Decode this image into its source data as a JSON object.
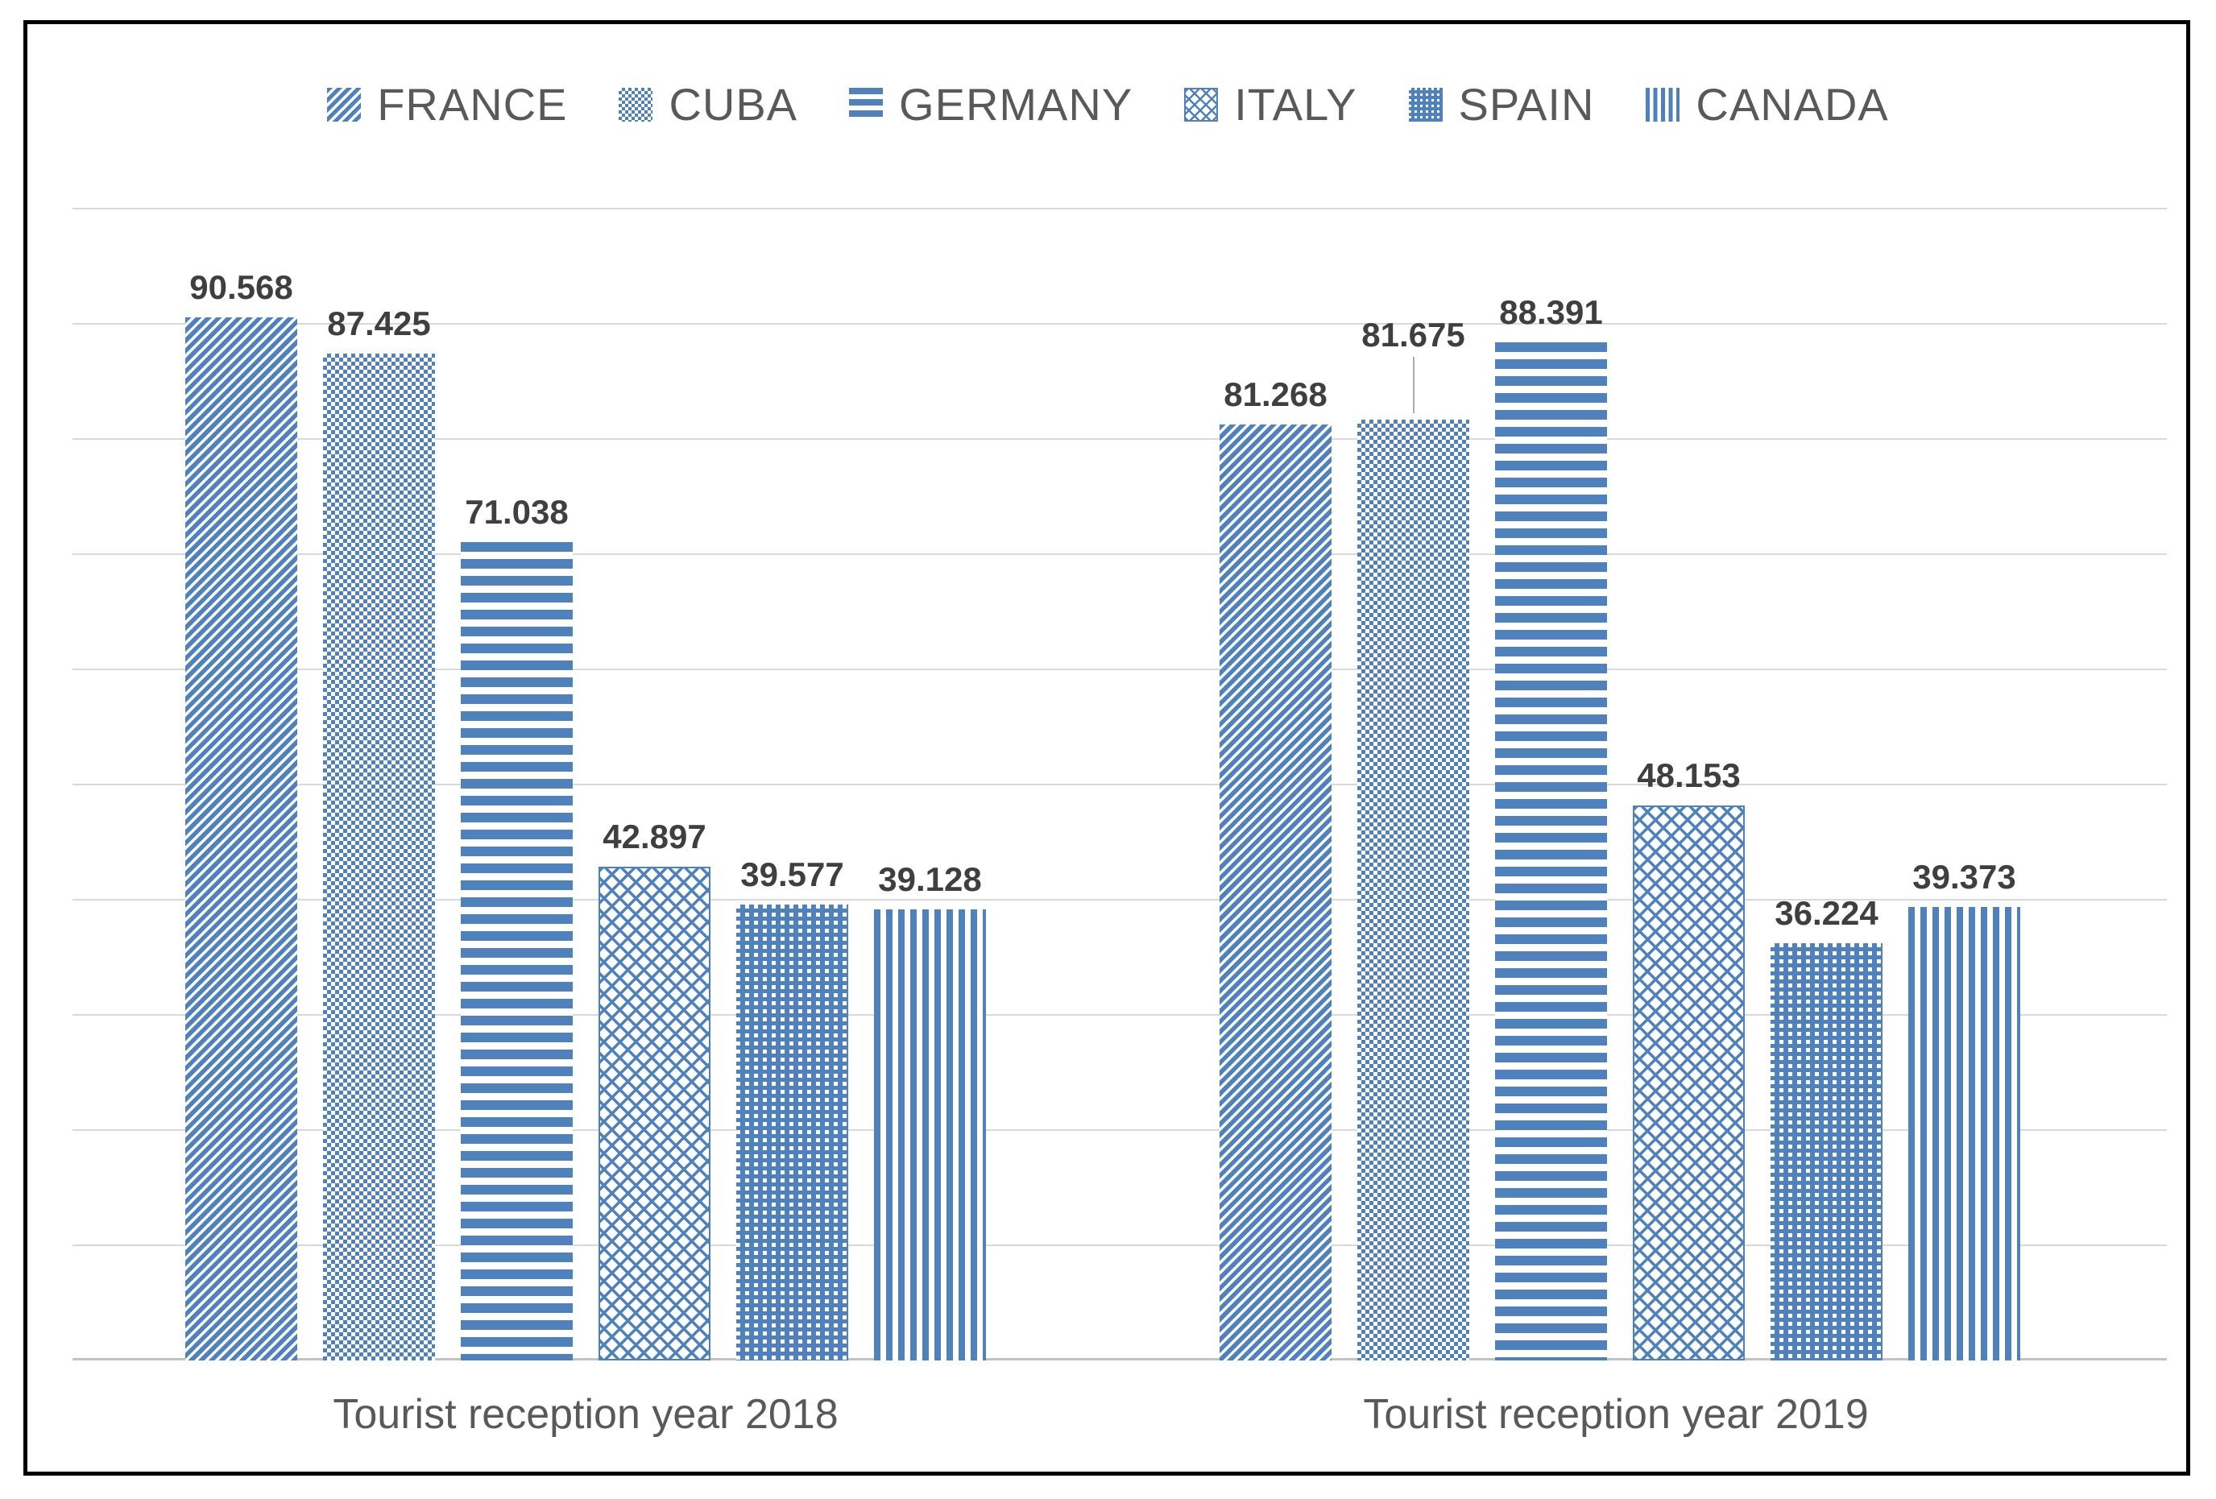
{
  "chart_data": {
    "type": "bar",
    "title": "",
    "categories": [
      "Tourist reception year 2018",
      "Tourist reception year 2019"
    ],
    "series": [
      {
        "name": "FRANCE",
        "pattern": "diagonal-stripes",
        "values": [
          90.568,
          81.268
        ],
        "data_labels": [
          "90.568",
          "81.268"
        ]
      },
      {
        "name": "CUBA",
        "pattern": "checkerboard-dots",
        "values": [
          87.425,
          81.675
        ],
        "data_labels": [
          "87.425",
          "81.675"
        ]
      },
      {
        "name": "GERMANY",
        "pattern": "horizontal-stripes",
        "values": [
          71.038,
          88.391
        ],
        "data_labels": [
          "71.038",
          "88.391"
        ]
      },
      {
        "name": "ITALY",
        "pattern": "diamond-weave",
        "values": [
          42.897,
          48.153
        ],
        "data_labels": [
          "42.897",
          "48.153"
        ]
      },
      {
        "name": "SPAIN",
        "pattern": "grid-dots",
        "values": [
          39.577,
          36.224
        ],
        "data_labels": [
          "39.577",
          "36.224"
        ]
      },
      {
        "name": "CANADA",
        "pattern": "vertical-stripes",
        "values": [
          39.128,
          39.373
        ],
        "data_labels": [
          "39.128",
          "39.373"
        ]
      }
    ],
    "ylim": [
      0,
      100
    ],
    "gridline_step": 10,
    "grid": "horizontal-only",
    "y_axis_tick_labels_visible": false,
    "legend_position": "top",
    "annotations": [
      {
        "type": "leader-line",
        "series": "CUBA",
        "category": "Tourist reception year 2019",
        "reason": "data label raised above neighbouring label"
      }
    ]
  },
  "legend": {
    "items": [
      "FRANCE",
      "CUBA",
      "GERMANY",
      "ITALY",
      "SPAIN",
      "CANADA"
    ]
  },
  "colors": {
    "bar_blue": "#4F81BD",
    "gridline": "#D9D9D9",
    "baseline": "#C3C3C3",
    "data_label_text": "#3F3F3F",
    "category_label_text": "#595959",
    "legend_text": "#595959",
    "frame_border": "#000000",
    "background": "#FFFFFF"
  }
}
